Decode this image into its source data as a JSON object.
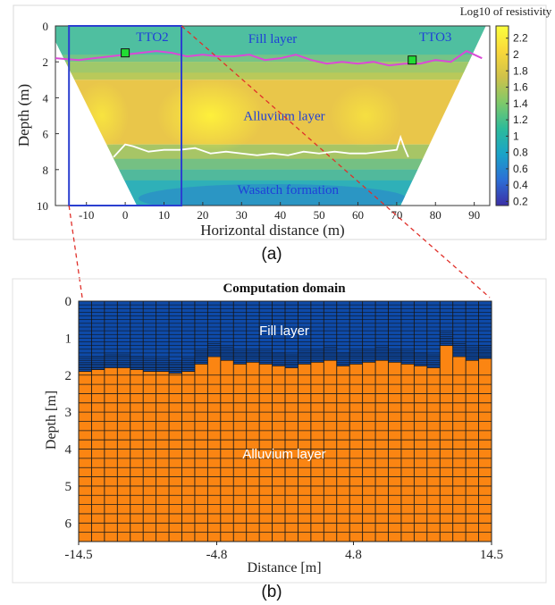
{
  "chart_data": [
    {
      "panel_label": "(a)",
      "type": "heatmap",
      "title": "",
      "xlabel": "Horizontal distance (m)",
      "ylabel": "Depth (m)",
      "xlim": [
        -18,
        94
      ],
      "ylim": [
        10,
        0
      ],
      "xticks": [
        -10,
        0,
        10,
        20,
        30,
        40,
        50,
        60,
        70,
        80,
        90
      ],
      "yticks": [
        0,
        2,
        4,
        6,
        8,
        10
      ],
      "colorbar": {
        "label": "Log10 of resistivity",
        "range": [
          0.15,
          2.35
        ],
        "ticks": [
          0.2,
          0.4,
          0.6,
          0.8,
          1,
          1.2,
          1.4,
          1.6,
          1.8,
          2,
          2.2
        ],
        "colors": [
          "#3b2ea6",
          "#2c6fd6",
          "#1aa3c8",
          "#2dbb9a",
          "#7ec96a",
          "#cfc24a",
          "#f9d73a",
          "#fbff3c"
        ]
      },
      "section_trapezoid": {
        "top": [
          {
            "x": -20,
            "y": 0
          },
          {
            "x": 93,
            "y": 0
          }
        ],
        "bottom": [
          {
            "x": 3,
            "y": 10
          },
          {
            "x": 71,
            "y": 10
          }
        ]
      },
      "layer_labels": [
        {
          "text": "Fill layer",
          "x": 38,
          "y": 0.7
        },
        {
          "text": "Alluvium layer",
          "x": 41,
          "y": 5.0
        },
        {
          "text": "Wasatch formation",
          "x": 42,
          "y": 9.1
        }
      ],
      "boreholes": [
        {
          "name": "TTO2",
          "x": 0,
          "y": 1.5,
          "label_x": 7,
          "label_y": 0.6
        },
        {
          "name": "TTO3",
          "x": 74,
          "y": 1.9,
          "label_x": 80,
          "label_y": 0.6
        }
      ],
      "fill_boundary_magenta": {
        "x": [
          -18,
          -12,
          -8,
          -4,
          0,
          4,
          8,
          12,
          16,
          20,
          24,
          28,
          32,
          36,
          40,
          44,
          48,
          52,
          56,
          60,
          64,
          68,
          72,
          76,
          80,
          84,
          88,
          92
        ],
        "y": [
          1.8,
          1.9,
          1.8,
          1.7,
          1.6,
          1.5,
          1.4,
          1.5,
          1.7,
          1.6,
          1.7,
          1.7,
          1.6,
          1.9,
          1.8,
          1.6,
          1.9,
          2.1,
          2.0,
          2.1,
          2.0,
          2.2,
          2.1,
          2.1,
          1.9,
          2.0,
          1.4,
          1.8
        ]
      },
      "alluvium_boundary_white": {
        "x": [
          -3,
          0,
          2,
          6,
          10,
          14,
          18,
          22,
          26,
          30,
          34,
          38,
          42,
          46,
          50,
          54,
          58,
          62,
          66,
          70,
          71,
          72,
          73
        ],
        "y": [
          7.3,
          6.6,
          6.7,
          7.0,
          6.9,
          6.9,
          6.8,
          7.1,
          7.0,
          7.1,
          7.2,
          7.1,
          7.2,
          7.0,
          7.1,
          7.0,
          7.1,
          7.1,
          7.0,
          6.9,
          6.2,
          6.8,
          7.3
        ]
      },
      "zoom_box": {
        "x": [
          -14.5,
          14.5
        ],
        "y": [
          0,
          10
        ]
      }
    },
    {
      "panel_label": "(b)",
      "type": "heatmap",
      "title": "Computation domain",
      "xlabel": "Distance [m]",
      "ylabel": "Depth [m]",
      "xlim": [
        -14.5,
        14.5
      ],
      "ylim": [
        6.5,
        0
      ],
      "xticks": [
        "-14.5",
        "-4.8",
        "4.8",
        "14.5"
      ],
      "yticks": [
        "0",
        "1",
        "2",
        "3",
        "4",
        "5",
        "6"
      ],
      "mesh_columns": 32,
      "layers": [
        {
          "name": "Fill layer",
          "color": "#0e4aa8",
          "label_x": 0,
          "label_y": 1.0
        },
        {
          "name": "Alluvium layer",
          "color": "#fb8512",
          "label_x": 0,
          "label_y": 4.4
        }
      ],
      "boundary_depth_per_column": [
        1.9,
        1.85,
        1.8,
        1.8,
        1.85,
        1.9,
        1.9,
        1.95,
        1.9,
        1.7,
        1.5,
        1.6,
        1.7,
        1.65,
        1.7,
        1.75,
        1.8,
        1.7,
        1.65,
        1.6,
        1.75,
        1.7,
        1.65,
        1.6,
        1.65,
        1.7,
        1.75,
        1.8,
        1.2,
        1.5,
        1.6,
        1.55
      ]
    }
  ]
}
